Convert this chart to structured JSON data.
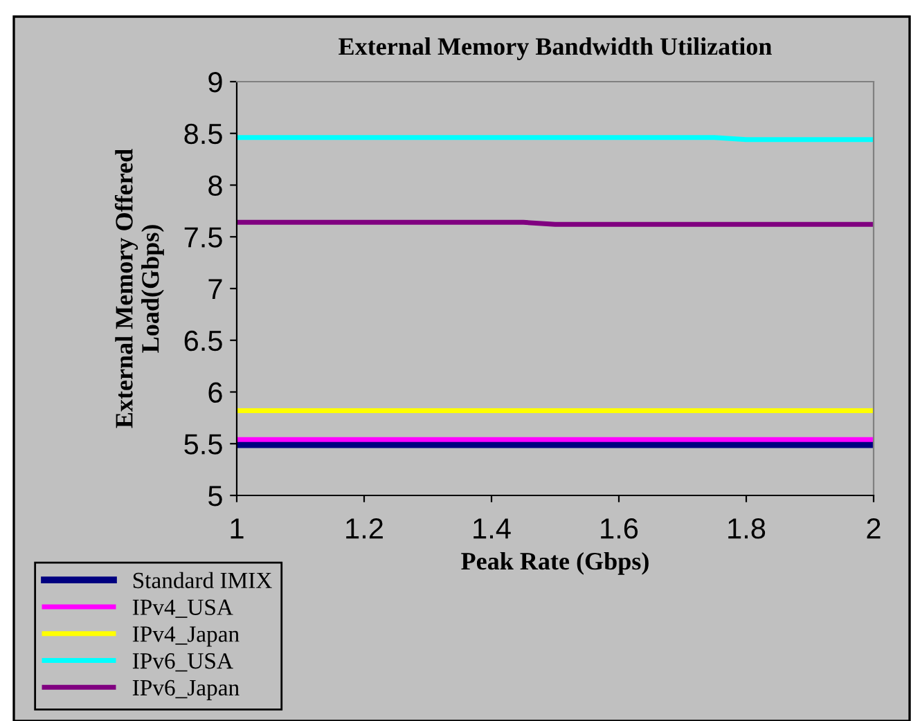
{
  "chart_data": {
    "type": "line",
    "title": "External Memory Bandwidth Utilization",
    "xlabel": "Peak Rate (Gbps)",
    "ylabel": "External Memory Offered\nLoad(Gbps)",
    "xlim": [
      1,
      2
    ],
    "xticks": [
      1,
      1.2,
      1.4,
      1.6,
      1.8,
      2
    ],
    "ylim": [
      5,
      9
    ],
    "yticks": [
      5,
      5.5,
      6,
      6.5,
      7,
      7.5,
      8,
      8.5,
      9
    ],
    "grid": false,
    "legend": "bottom left",
    "marker": "none",
    "line_style": "solid",
    "series": [
      {
        "name": "Standard IMIX",
        "color": "#000080",
        "x": [
          1,
          2
        ],
        "values": [
          5.49,
          5.49
        ]
      },
      {
        "name": "IPv4_USA",
        "color": "#ff00ff",
        "x": [
          1,
          2
        ],
        "values": [
          5.54,
          5.54
        ]
      },
      {
        "name": "IPv4_Japan",
        "color": "#ffff00",
        "x": [
          1,
          2
        ],
        "values": [
          5.82,
          5.82
        ]
      },
      {
        "name": "IPv6_USA",
        "color": "#00ffff",
        "x": [
          1,
          1.75,
          1.8,
          2
        ],
        "values": [
          8.46,
          8.46,
          8.44,
          8.44
        ]
      },
      {
        "name": "IPv6_Japan",
        "color": "#800080",
        "x": [
          1,
          1.45,
          1.5,
          2
        ],
        "values": [
          7.64,
          7.64,
          7.62,
          7.62
        ]
      }
    ]
  }
}
